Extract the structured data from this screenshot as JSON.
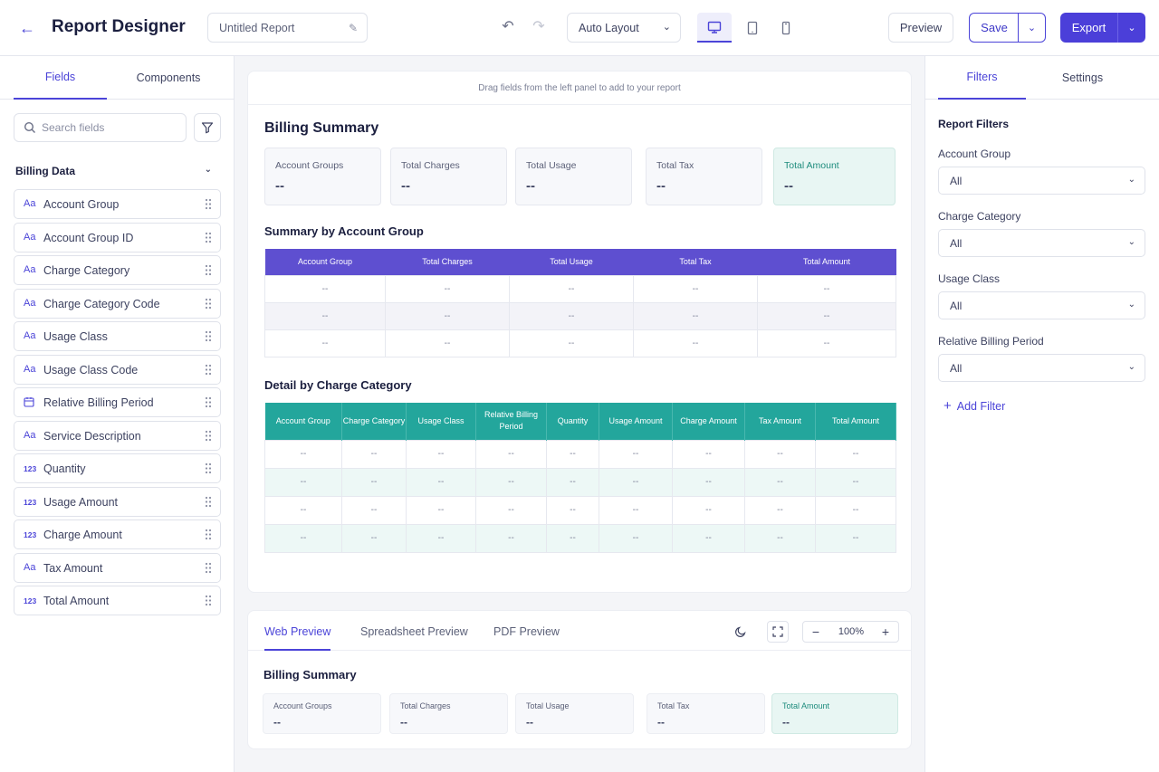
{
  "header": {
    "title": "Report Designer",
    "report_name": "Untitled Report",
    "layout": "Auto Layout",
    "preview": "Preview",
    "save": "Save",
    "export": "Export"
  },
  "left": {
    "tabs": [
      "Fields",
      "Components"
    ],
    "search_placeholder": "Search fields",
    "group": "Billing Data",
    "fields": [
      {
        "type": "Aa",
        "name": "Account Group"
      },
      {
        "type": "Aa",
        "name": "Account Group ID"
      },
      {
        "type": "Aa",
        "name": "Charge Category"
      },
      {
        "type": "Aa",
        "name": "Charge Category Code"
      },
      {
        "type": "Aa",
        "name": "Usage Class"
      },
      {
        "type": "Aa",
        "name": "Usage Class Code"
      },
      {
        "type": "calendar-icon",
        "name": "Relative Billing Period"
      },
      {
        "type": "Aa",
        "name": "Service Description"
      },
      {
        "type": "123",
        "name": "Quantity"
      },
      {
        "type": "123",
        "name": "Usage Amount"
      },
      {
        "type": "123",
        "name": "Charge Amount"
      },
      {
        "type": "Aa",
        "name": "Tax Amount"
      },
      {
        "type": "123",
        "name": "Total Amount"
      }
    ]
  },
  "canvas": {
    "hint": "Drag fields from the left panel to add to your report",
    "title": "Billing Summary",
    "kpis": [
      {
        "label": "Account Groups",
        "value": "--"
      },
      {
        "label": "Total Charges",
        "value": "--"
      },
      {
        "label": "Total Usage",
        "value": "--"
      },
      {
        "label": "Total Tax",
        "value": "--"
      },
      {
        "label": "Total Amount",
        "value": "--"
      }
    ],
    "summary_title": "Summary by Account Group",
    "summary_columns": [
      "Account Group",
      "Total Charges",
      "Total Usage",
      "Total Tax",
      "Total Amount"
    ],
    "summary_rows": [
      [
        "--",
        "--",
        "--",
        "--",
        "--"
      ],
      [
        "--",
        "--",
        "--",
        "--",
        "--"
      ],
      [
        "--",
        "--",
        "--",
        "--",
        "--"
      ]
    ],
    "detail_title": "Detail by Charge Category",
    "detail_columns": [
      "Account Group",
      "Charge Category",
      "Usage Class",
      "Relative Billing Period",
      "Quantity",
      "Usage Amount",
      "Charge Amount",
      "Tax Amount",
      "Total Amount"
    ],
    "detail_rows": [
      [
        "--",
        "--",
        "--",
        "--",
        "--",
        "--",
        "--",
        "--",
        "--"
      ],
      [
        "--",
        "--",
        "--",
        "--",
        "--",
        "--",
        "--",
        "--",
        "--"
      ],
      [
        "--",
        "--",
        "--",
        "--",
        "--",
        "--",
        "--",
        "--",
        "--"
      ],
      [
        "--",
        "--",
        "--",
        "--",
        "--",
        "--",
        "--",
        "--",
        "--"
      ]
    ]
  },
  "preview": {
    "tabs": [
      "Web Preview",
      "Spreadsheet Preview",
      "PDF Preview"
    ],
    "zoom": "100%",
    "title": "Billing Summary",
    "kpis": [
      {
        "label": "Account Groups",
        "value": "--"
      },
      {
        "label": "Total Charges",
        "value": "--"
      },
      {
        "label": "Total Usage",
        "value": "--"
      },
      {
        "label": "Total Tax",
        "value": "--"
      },
      {
        "label": "Total Amount",
        "value": "--"
      }
    ]
  },
  "right": {
    "tabs": [
      "Filters",
      "Settings"
    ],
    "heading": "Report Filters",
    "filters": [
      {
        "label": "Account Group",
        "value": "All"
      },
      {
        "label": "Charge Category",
        "value": "All"
      },
      {
        "label": "Usage Class",
        "value": "All"
      },
      {
        "label": "Relative Billing Period",
        "value": "All"
      }
    ],
    "add_filter": "Add Filter"
  },
  "colors": {
    "accent": "#4b44d8",
    "summary_header": "#5e4fd0",
    "detail_header": "#23a69c"
  }
}
